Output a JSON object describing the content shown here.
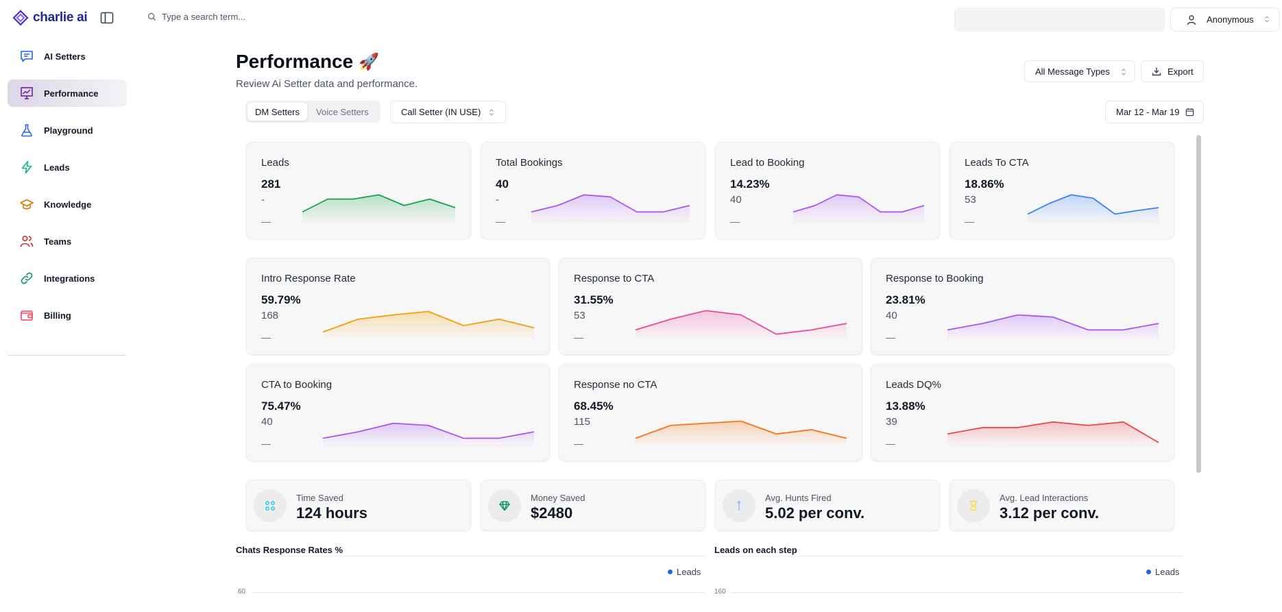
{
  "app": {
    "name": "charlie ai"
  },
  "search": {
    "placeholder": "Type a search term..."
  },
  "user": {
    "name": "Anonymous"
  },
  "sidebar": {
    "items": [
      {
        "label": "AI Setters",
        "icon": "chat-icon",
        "color": "#2563eb",
        "active": false
      },
      {
        "label": "Performance",
        "icon": "presentation-chart-icon",
        "color": "#6b21a8",
        "active": true
      },
      {
        "label": "Playground",
        "icon": "flask-icon",
        "color": "#2563eb",
        "active": false
      },
      {
        "label": "Leads",
        "icon": "lightning-icon",
        "color": "#10b981",
        "active": false
      },
      {
        "label": "Knowledge",
        "icon": "graduation-cap-icon",
        "color": "#d97706",
        "active": false
      },
      {
        "label": "Teams",
        "icon": "users-icon",
        "color": "#dc2626",
        "active": false
      },
      {
        "label": "Integrations",
        "icon": "link-icon",
        "color": "#059669",
        "active": false
      },
      {
        "label": "Billing",
        "icon": "wallet-icon",
        "color": "#f43f5e",
        "active": false
      }
    ]
  },
  "page": {
    "title": "Performance",
    "emoji": "🚀",
    "subtitle": "Review Ai Setter data and performance.",
    "message_types": "All Message Types",
    "export_label": "Export",
    "tabs": [
      "DM Setters",
      "Voice Setters"
    ],
    "active_tab": 0,
    "setter": "Call Setter (IN USE)",
    "date_range": "Mar 12 - Mar 19"
  },
  "metric_cards": [
    {
      "title": "Leads",
      "value": "281",
      "sub": "-",
      "dash": "—",
      "color": "#16a34a",
      "spark": [
        3,
        6,
        6,
        7,
        4.5,
        6,
        4
      ]
    },
    {
      "title": "Total Bookings",
      "value": "40",
      "sub": "-",
      "dash": "—",
      "color": "#a855f7",
      "spark": [
        3,
        4.5,
        7,
        6.5,
        3,
        3,
        4.5
      ]
    },
    {
      "title": "Lead to Booking",
      "value": "14.23%",
      "sub": "40",
      "dash": "—",
      "color": "#a855f7",
      "spark": [
        3,
        4.5,
        7,
        6.5,
        3,
        3,
        4.5
      ]
    },
    {
      "title": "Leads To CTA",
      "value": "18.86%",
      "sub": "53",
      "dash": "—",
      "color": "#3b82f6",
      "spark": [
        2.5,
        5,
        7,
        6.2,
        2.5,
        3.3,
        4
      ]
    },
    {
      "title": "Intro Response Rate",
      "value": "59.79%",
      "sub": "168",
      "dash": "—",
      "color": "#f59e0b",
      "spark": [
        2,
        5,
        6,
        6.8,
        3.5,
        5,
        3
      ]
    },
    {
      "title": "Response to CTA",
      "value": "31.55%",
      "sub": "53",
      "dash": "—",
      "color": "#ec4899",
      "spark": [
        2.5,
        5,
        7,
        6,
        1.5,
        2.5,
        4
      ]
    },
    {
      "title": "Response to Booking",
      "value": "23.81%",
      "sub": "40",
      "dash": "—",
      "color": "#a855f7",
      "spark": [
        2.5,
        4,
        6,
        5.5,
        2.5,
        2.5,
        4
      ]
    },
    {
      "title": "CTA to Booking",
      "value": "75.47%",
      "sub": "40",
      "dash": "—",
      "color": "#a855f7",
      "spark": [
        2,
        3.5,
        5.5,
        5,
        2,
        2,
        3.5
      ]
    },
    {
      "title": "Response no CTA",
      "value": "68.45%",
      "sub": "115",
      "dash": "—",
      "color": "#f97316",
      "spark": [
        2,
        5,
        5.5,
        6,
        3,
        4,
        2
      ]
    },
    {
      "title": "Leads DQ%",
      "value": "13.88%",
      "sub": "39",
      "dash": "—",
      "color": "#ef4444",
      "spark": [
        3,
        4.5,
        4.5,
        5.8,
        5,
        5.8,
        1
      ]
    }
  ],
  "stats": [
    {
      "label": "Time Saved",
      "value": "124 hours",
      "icon": "grid-dots-icon",
      "color": "#22d3ee"
    },
    {
      "label": "Money Saved",
      "value": "$2480",
      "icon": "diamond-icon",
      "color": "#059669"
    },
    {
      "label": "Avg. Hunts Fired",
      "value": "5.02 per conv.",
      "icon": "pin-icon",
      "color": "#93c5fd"
    },
    {
      "label": "Avg. Lead Interactions",
      "value": "3.12 per conv.",
      "icon": "hourglass-icon",
      "color": "#fde047"
    }
  ],
  "charts": [
    {
      "title": "Chats Response Rates %",
      "legend": "Leads",
      "first_tick": "60"
    },
    {
      "title": "Leads on each step",
      "legend": "Leads",
      "first_tick": "160"
    }
  ]
}
